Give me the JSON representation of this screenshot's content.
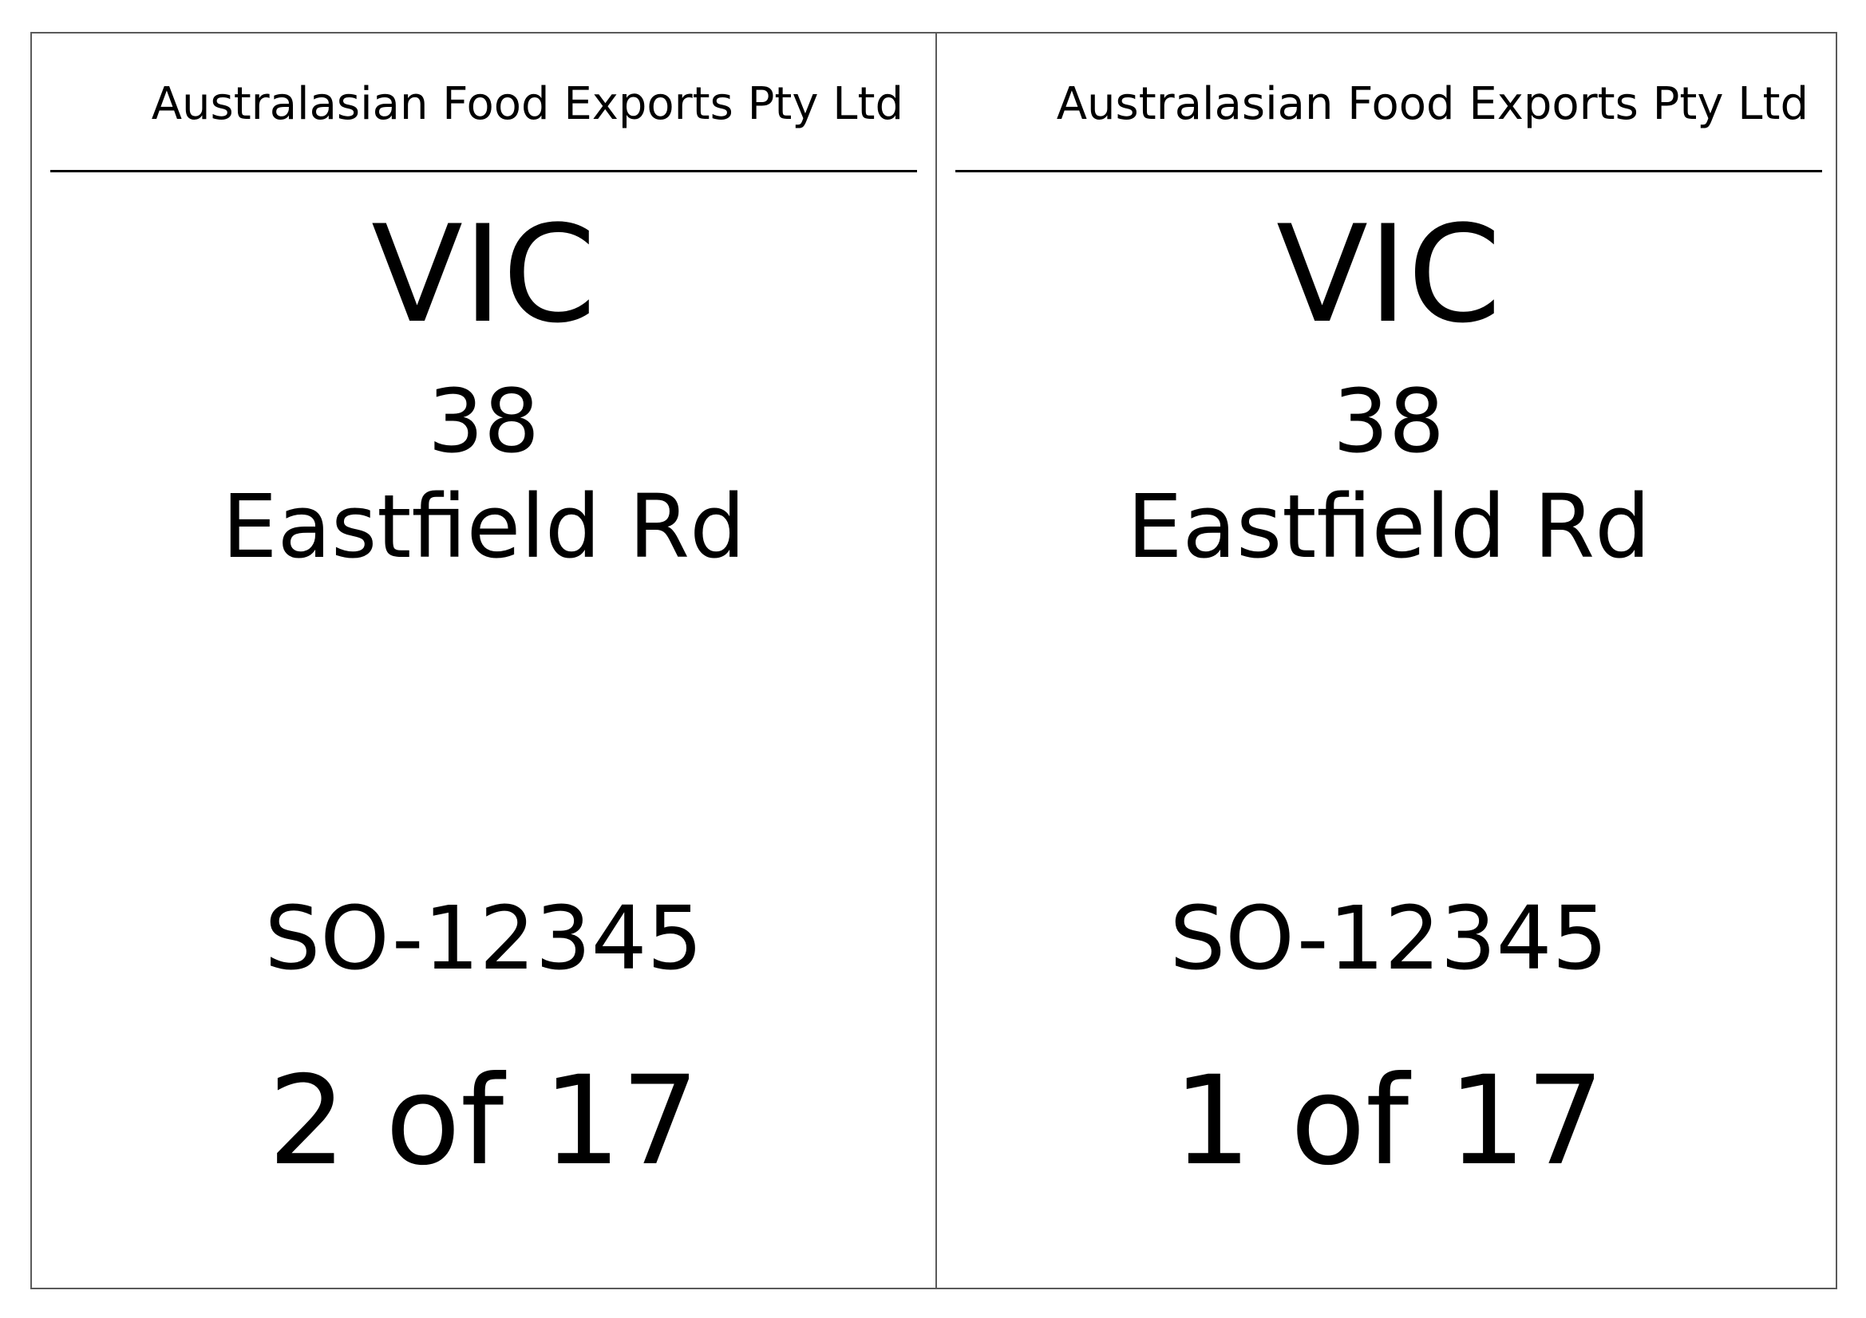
{
  "labels": [
    {
      "company": "Australasian Food Exports Pty Ltd",
      "state": "VIC",
      "street_number": "38",
      "street_name": "Eastfield Rd",
      "order_number": "SO-12345",
      "carton_count": "2 of 17"
    },
    {
      "company": "Australasian Food Exports Pty Ltd",
      "state": "VIC",
      "street_number": "38",
      "street_name": "Eastfield Rd",
      "order_number": "SO-12345",
      "carton_count": "1 of 17"
    }
  ],
  "colors": {
    "border": "#5a5a5a",
    "text": "#000000",
    "background": "#ffffff"
  }
}
